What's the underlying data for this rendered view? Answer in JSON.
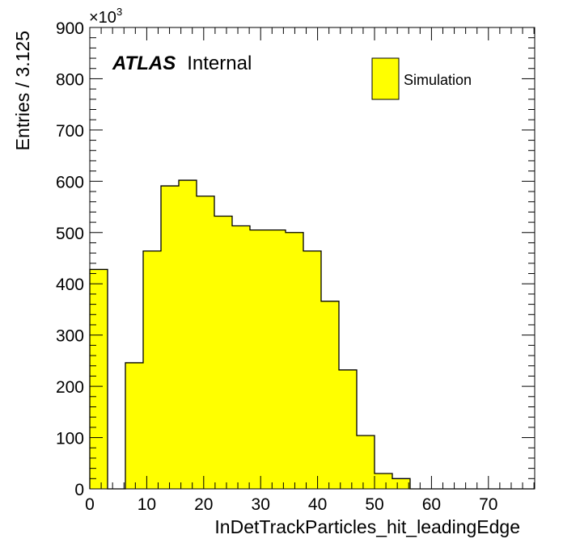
{
  "chart_data": {
    "type": "bar",
    "histogram": true,
    "xlabel": "InDetTrackParticles_hit_leadingEdge",
    "ylabel": "Entries / 3.125",
    "xlim": [
      0,
      78.125
    ],
    "ylim": [
      0,
      900
    ],
    "y_multiplier_label": "×10",
    "y_multiplier_exponent": "3",
    "x_ticks": [
      0,
      10,
      20,
      30,
      40,
      50,
      60,
      70
    ],
    "y_ticks": [
      0,
      100,
      200,
      300,
      400,
      500,
      600,
      700,
      800,
      900
    ],
    "bin_width": 3.125,
    "bin_edges_start": 0,
    "values": [
      428,
      0,
      246,
      464,
      591,
      602,
      571,
      532,
      513,
      505,
      505,
      500,
      464,
      366,
      232,
      104,
      30,
      20,
      0,
      0,
      0,
      0,
      0,
      0,
      0
    ],
    "fill_color": "#ffff00",
    "edge_color": "#000000",
    "legend": {
      "position": "top-right",
      "entries": [
        "Simulation"
      ]
    },
    "annotation": {
      "bold": "ATLAS",
      "normal": "Internal"
    }
  }
}
